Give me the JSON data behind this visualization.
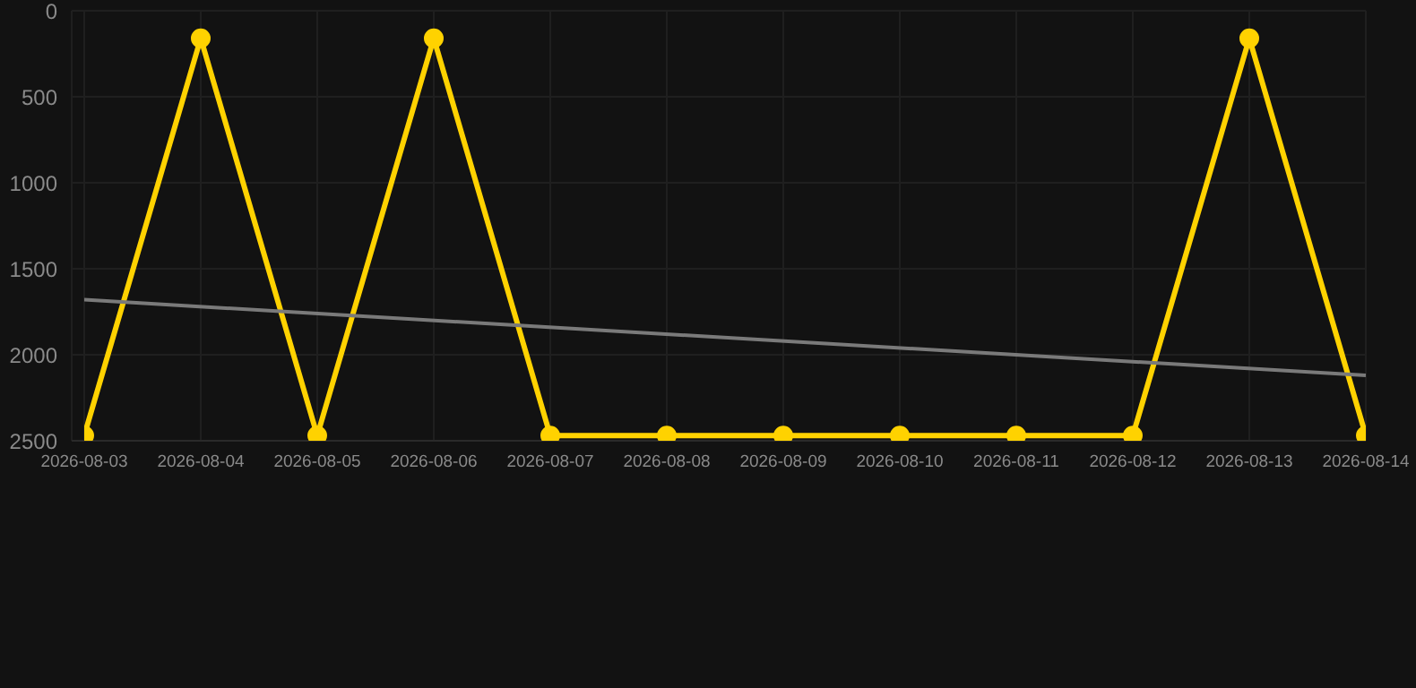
{
  "chart_data": {
    "type": "line",
    "categories": [
      "2026-08-03",
      "2026-08-04",
      "2026-08-05",
      "2026-08-06",
      "2026-08-07",
      "2026-08-08",
      "2026-08-09",
      "2026-08-10",
      "2026-08-11",
      "2026-08-12",
      "2026-08-13",
      "2026-08-14"
    ],
    "series": [
      {
        "color": "#ffd200",
        "values": [
          2470,
          160,
          2470,
          160,
          2470,
          2470,
          2470,
          2470,
          2470,
          2470,
          160,
          2470
        ]
      },
      {
        "type": "line",
        "color": "#7a7a7a",
        "marker": "none",
        "values": [
          1680,
          null,
          null,
          null,
          null,
          null,
          null,
          null,
          null,
          null,
          null,
          2120
        ]
      }
    ],
    "ylim": [
      2500,
      0
    ],
    "yticks": [
      0,
      500,
      1000,
      1500,
      2000,
      2500
    ],
    "grid": true,
    "marker": "circle"
  }
}
